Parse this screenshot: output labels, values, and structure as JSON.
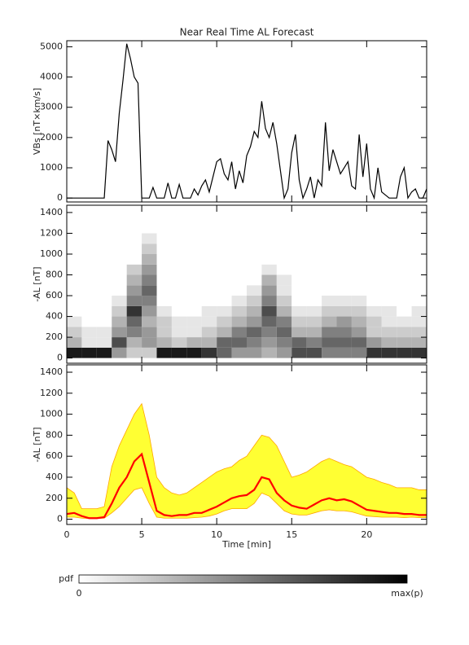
{
  "chart_data": [
    {
      "type": "line",
      "title": "Near Real Time AL Forecast",
      "ylabel": "VBs [nT×km/s]",
      "color": "#000000",
      "ylim": [
        -130,
        5200
      ],
      "yticks": [
        0,
        1000,
        2000,
        3000,
        4000,
        5000
      ],
      "x": [
        0,
        0.25,
        0.5,
        0.75,
        1,
        1.25,
        1.5,
        1.75,
        2,
        2.25,
        2.5,
        2.75,
        3,
        3.25,
        3.5,
        3.75,
        4,
        4.25,
        4.5,
        4.75,
        5,
        5.25,
        5.5,
        5.75,
        6,
        6.25,
        6.5,
        6.75,
        7,
        7.25,
        7.5,
        7.75,
        8,
        8.25,
        8.5,
        8.75,
        9,
        9.25,
        9.5,
        9.75,
        10,
        10.25,
        10.5,
        10.75,
        11,
        11.25,
        11.5,
        11.75,
        12,
        12.25,
        12.5,
        12.75,
        13,
        13.25,
        13.5,
        13.75,
        14,
        14.25,
        14.5,
        14.75,
        15,
        15.25,
        15.5,
        15.75,
        16,
        16.25,
        16.5,
        16.75,
        17,
        17.25,
        17.5,
        17.75,
        18,
        18.25,
        18.5,
        18.75,
        19,
        19.25,
        19.5,
        19.75,
        20,
        20.25,
        20.5,
        20.75,
        21,
        21.25,
        21.5,
        21.75,
        22,
        22.25,
        22.5,
        22.75,
        23,
        23.25,
        23.5,
        23.75,
        24
      ],
      "values": [
        0,
        0,
        0,
        0,
        0,
        0,
        0,
        0,
        0,
        0,
        0,
        1900,
        1600,
        1200,
        2800,
        3900,
        5100,
        4600,
        4000,
        3800,
        0,
        0,
        0,
        350,
        0,
        0,
        0,
        500,
        0,
        0,
        450,
        0,
        0,
        0,
        300,
        100,
        400,
        600,
        200,
        700,
        1200,
        1300,
        800,
        600,
        1200,
        300,
        900,
        500,
        1400,
        1700,
        2200,
        2000,
        3200,
        2300,
        2000,
        2500,
        1800,
        900,
        0,
        300,
        1500,
        2100,
        600,
        0,
        300,
        700,
        0,
        600,
        400,
        2500,
        900,
        1600,
        1200,
        800,
        1000,
        1200,
        400,
        300,
        2100,
        700,
        1800,
        300,
        0,
        1000,
        200,
        100,
        0,
        0,
        0,
        700,
        1000,
        0,
        200,
        300,
        0,
        0,
        300
      ]
    },
    {
      "type": "heatmap",
      "ylabel": "-AL [nT]",
      "ylim": [
        -50,
        1470
      ],
      "yticks": [
        0,
        200,
        400,
        600,
        800,
        1000,
        1200,
        1400
      ],
      "x_edges": [
        0,
        1,
        2,
        3,
        4,
        5,
        6,
        7,
        8,
        9,
        10,
        11,
        12,
        13,
        14,
        15,
        16,
        17,
        18,
        19,
        20,
        21,
        22,
        23,
        24
      ],
      "y_edges": [
        0,
        100,
        200,
        300,
        400,
        500,
        600,
        700,
        800,
        900,
        1000,
        1100,
        1200
      ],
      "z": [
        [
          0.9,
          0.3,
          0.2,
          0.1,
          0,
          0,
          0,
          0,
          0,
          0,
          0,
          0
        ],
        [
          0.9,
          0.1,
          0.1,
          0,
          0,
          0,
          0,
          0,
          0,
          0,
          0,
          0
        ],
        [
          0.9,
          0.1,
          0.1,
          0,
          0,
          0,
          0,
          0,
          0,
          0,
          0,
          0
        ],
        [
          0.4,
          0.7,
          0.4,
          0.3,
          0.2,
          0.1,
          0,
          0,
          0,
          0,
          0,
          0
        ],
        [
          0.2,
          0.3,
          0.5,
          0.6,
          0.8,
          0.5,
          0.4,
          0.3,
          0.2,
          0,
          0,
          0
        ],
        [
          0.2,
          0.4,
          0.4,
          0.3,
          0.4,
          0.5,
          0.6,
          0.5,
          0.4,
          0.3,
          0.2,
          0.1
        ],
        [
          0.9,
          0.3,
          0.2,
          0.2,
          0.1,
          0,
          0,
          0,
          0,
          0,
          0,
          0
        ],
        [
          0.9,
          0.2,
          0.1,
          0.1,
          0,
          0,
          0,
          0,
          0,
          0,
          0,
          0
        ],
        [
          0.9,
          0.3,
          0.1,
          0.1,
          0,
          0,
          0,
          0,
          0,
          0,
          0,
          0
        ],
        [
          0.8,
          0.3,
          0.2,
          0.1,
          0.1,
          0,
          0,
          0,
          0,
          0,
          0,
          0
        ],
        [
          0.6,
          0.6,
          0.3,
          0.2,
          0.1,
          0,
          0,
          0,
          0,
          0,
          0,
          0
        ],
        [
          0.4,
          0.6,
          0.5,
          0.3,
          0.2,
          0.1,
          0,
          0,
          0,
          0,
          0,
          0
        ],
        [
          0.4,
          0.5,
          0.6,
          0.4,
          0.3,
          0.2,
          0.1,
          0,
          0,
          0,
          0,
          0
        ],
        [
          0.3,
          0.4,
          0.5,
          0.6,
          0.7,
          0.5,
          0.4,
          0.3,
          0.1,
          0,
          0,
          0
        ],
        [
          0.4,
          0.5,
          0.6,
          0.5,
          0.3,
          0.2,
          0.1,
          0.1,
          0,
          0,
          0,
          0
        ],
        [
          0.7,
          0.6,
          0.3,
          0.2,
          0.1,
          0,
          0,
          0,
          0,
          0,
          0,
          0
        ],
        [
          0.7,
          0.5,
          0.3,
          0.2,
          0.1,
          0,
          0,
          0,
          0,
          0,
          0,
          0
        ],
        [
          0.5,
          0.6,
          0.5,
          0.3,
          0.2,
          0.1,
          0,
          0,
          0,
          0,
          0,
          0
        ],
        [
          0.5,
          0.6,
          0.5,
          0.4,
          0.2,
          0.1,
          0,
          0,
          0,
          0,
          0,
          0
        ],
        [
          0.5,
          0.6,
          0.4,
          0.3,
          0.2,
          0.1,
          0,
          0,
          0,
          0,
          0,
          0
        ],
        [
          0.8,
          0.4,
          0.2,
          0.2,
          0.1,
          0,
          0,
          0,
          0,
          0,
          0,
          0
        ],
        [
          0.8,
          0.3,
          0.2,
          0.1,
          0.1,
          0,
          0,
          0,
          0,
          0,
          0,
          0
        ],
        [
          0.8,
          0.3,
          0.2,
          0.1,
          0,
          0,
          0,
          0,
          0,
          0,
          0,
          0
        ],
        [
          0.8,
          0.3,
          0.2,
          0.1,
          0.1,
          0,
          0,
          0,
          0,
          0,
          0,
          0
        ]
      ],
      "colorbar": {
        "label": "pdf",
        "min_label": "0",
        "max_label": "max(p)"
      }
    },
    {
      "type": "band",
      "ylabel": "-AL [nT]",
      "xlabel": "Time [min]",
      "xlim": [
        0,
        24
      ],
      "xticks": [
        0,
        5,
        10,
        15,
        20
      ],
      "ylim": [
        -50,
        1470
      ],
      "yticks": [
        0,
        200,
        400,
        600,
        800,
        1000,
        1200,
        1400
      ],
      "band_color": "#ffff33",
      "edge_color": "#ffa500",
      "line_color": "#ff0000",
      "x": [
        0,
        0.5,
        1,
        1.5,
        2,
        2.5,
        3,
        3.5,
        4,
        4.5,
        5,
        5.5,
        6,
        6.5,
        7,
        7.5,
        8,
        8.5,
        9,
        9.5,
        10,
        10.5,
        11,
        11.5,
        12,
        12.5,
        13,
        13.5,
        14,
        14.5,
        15,
        15.5,
        16,
        16.5,
        17,
        17.5,
        18,
        18.5,
        19,
        19.5,
        20,
        20.5,
        21,
        21.5,
        22,
        22.5,
        23,
        23.5,
        24
      ],
      "lower": [
        20,
        20,
        10,
        5,
        5,
        10,
        60,
        120,
        200,
        280,
        300,
        150,
        20,
        10,
        10,
        10,
        10,
        15,
        20,
        30,
        50,
        80,
        100,
        100,
        100,
        150,
        250,
        220,
        150,
        80,
        50,
        40,
        40,
        60,
        80,
        90,
        80,
        80,
        70,
        50,
        30,
        25,
        20,
        20,
        20,
        15,
        20,
        15,
        15
      ],
      "upper": [
        300,
        250,
        100,
        100,
        100,
        120,
        500,
        700,
        850,
        1000,
        1100,
        800,
        400,
        300,
        250,
        230,
        250,
        300,
        350,
        400,
        450,
        480,
        500,
        560,
        600,
        700,
        800,
        780,
        700,
        550,
        400,
        420,
        450,
        500,
        550,
        580,
        550,
        520,
        500,
        450,
        400,
        380,
        350,
        330,
        300,
        300,
        300,
        280,
        280
      ],
      "median": [
        50,
        60,
        30,
        10,
        10,
        20,
        150,
        300,
        400,
        550,
        620,
        350,
        80,
        40,
        30,
        40,
        40,
        60,
        60,
        90,
        120,
        160,
        200,
        220,
        230,
        280,
        400,
        380,
        250,
        180,
        130,
        110,
        100,
        140,
        180,
        200,
        180,
        190,
        170,
        130,
        90,
        80,
        70,
        60,
        60,
        50,
        50,
        40,
        40
      ]
    }
  ]
}
